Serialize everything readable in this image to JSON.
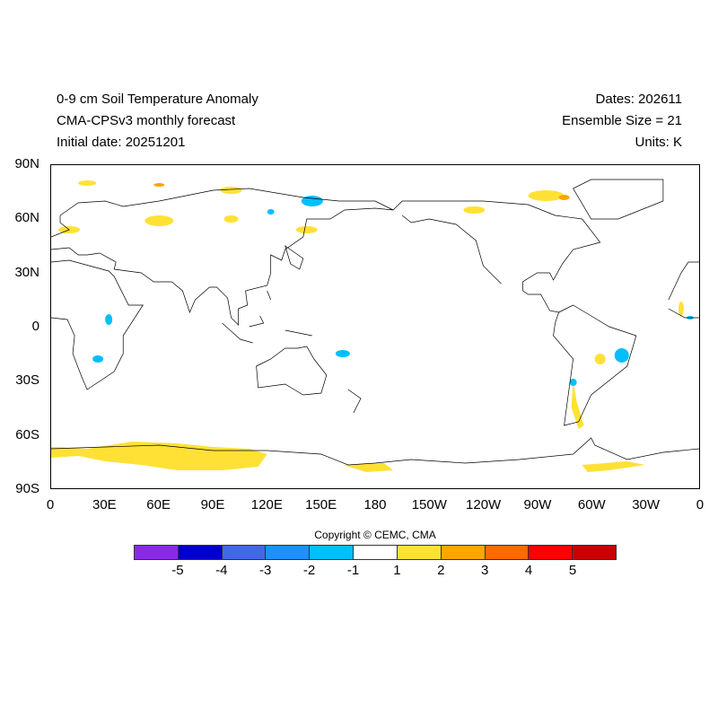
{
  "header": {
    "title": "0-9 cm Soil Temperature Anomaly",
    "subtitle": "CMA-CPSv3 monthly forecast",
    "initial_date": "Initial date: 20251201",
    "dates": "Dates: 202611",
    "ensemble": "Ensemble Size = 21",
    "units": "Units: K"
  },
  "map": {
    "projection": "cylindrical equidistant, 0-360 longitude",
    "lat_labels": [
      "90N",
      "60N",
      "30N",
      "0",
      "30S",
      "60S",
      "90S"
    ],
    "lon_labels": [
      "0",
      "30E",
      "60E",
      "90E",
      "120E",
      "150E",
      "180",
      "150W",
      "120W",
      "90W",
      "60W",
      "30W",
      "0"
    ],
    "anomaly_colors": {
      "positive_1_2": "#ffe135",
      "negative_-2_-1": "#00bfff",
      "positive_2_3": "#ffa500"
    }
  },
  "colorbar": {
    "copyright": "Copyright © CEMC, CMA",
    "colors": [
      "#8a2be2",
      "#0000cd",
      "#4169e1",
      "#1e90ff",
      "#00bfff",
      "#ffffff",
      "#ffe135",
      "#ffa500",
      "#ff6a00",
      "#ff0000",
      "#c80000"
    ],
    "labels": [
      "-5",
      "-4",
      "-3",
      "-2",
      "-1",
      "1",
      "2",
      "3",
      "4",
      "5"
    ]
  }
}
